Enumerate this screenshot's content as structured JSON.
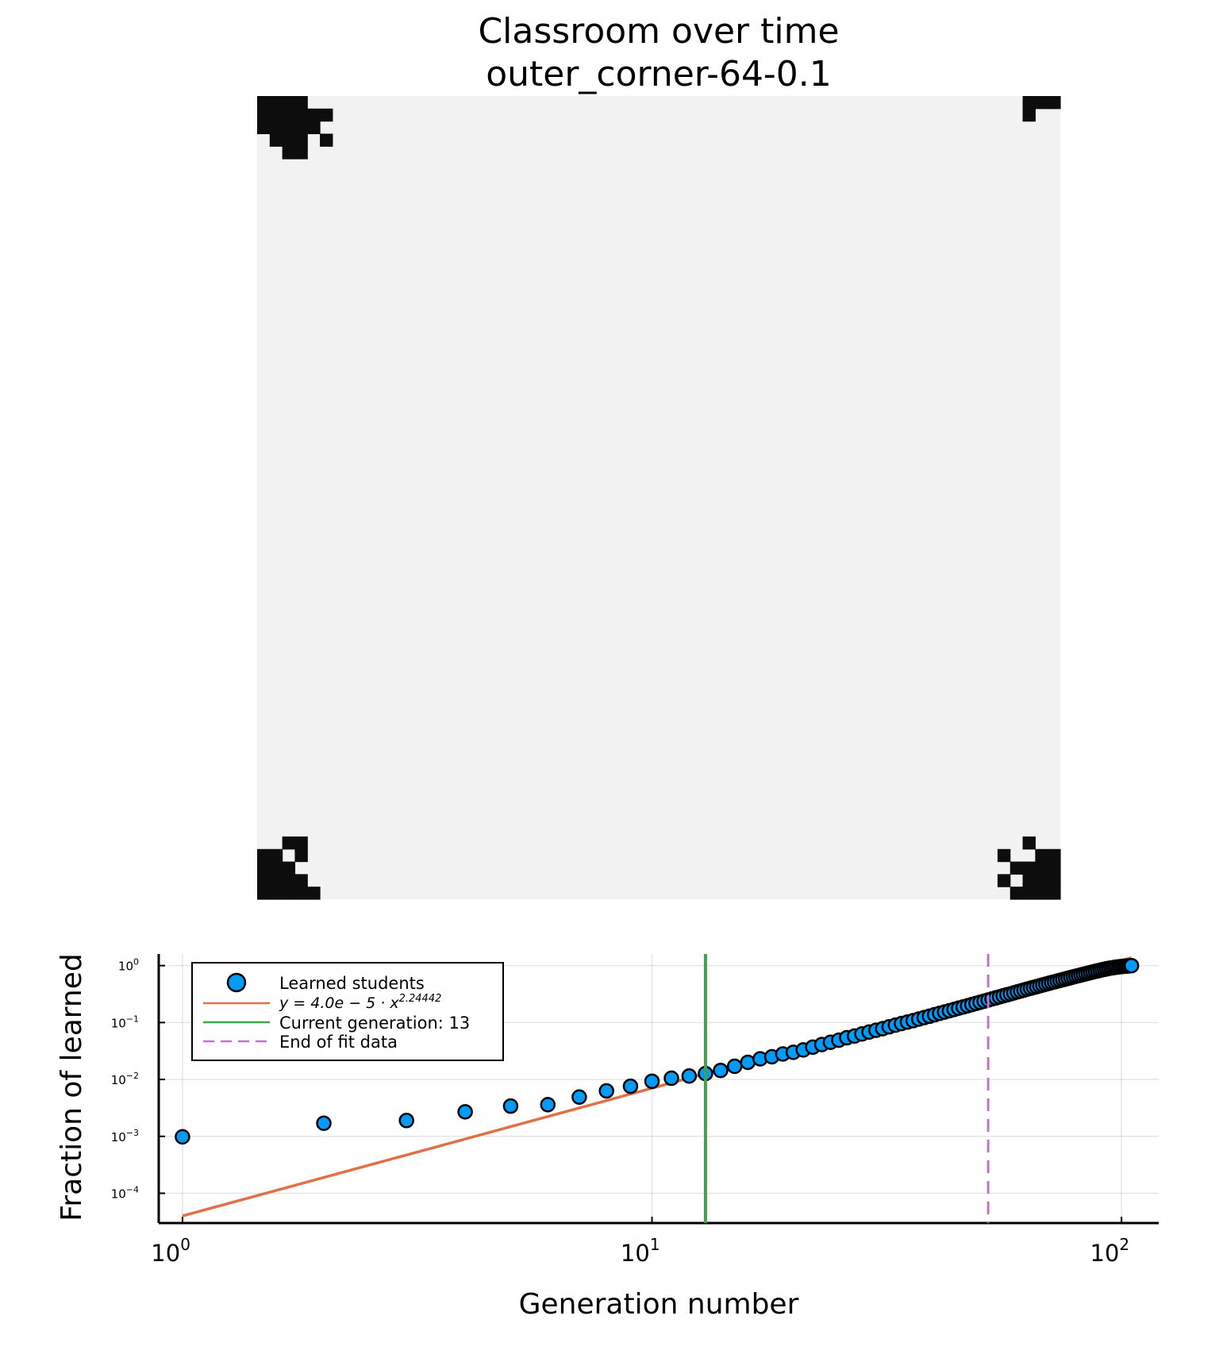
{
  "figure": {
    "title_line1": "Classroom over time",
    "title_line2": "outer_corner-64-0.1"
  },
  "heatmap": {
    "grid_size": 64,
    "background_color": "#f2f2f2",
    "learned_color": "#0d0d0d",
    "learned_cells": [
      [
        0,
        0
      ],
      [
        0,
        1
      ],
      [
        0,
        2
      ],
      [
        0,
        3
      ],
      [
        1,
        0
      ],
      [
        1,
        1
      ],
      [
        1,
        2
      ],
      [
        1,
        3
      ],
      [
        1,
        4
      ],
      [
        1,
        5
      ],
      [
        2,
        0
      ],
      [
        2,
        1
      ],
      [
        2,
        2
      ],
      [
        2,
        3
      ],
      [
        2,
        4
      ],
      [
        3,
        1
      ],
      [
        3,
        2
      ],
      [
        3,
        3
      ],
      [
        3,
        5
      ],
      [
        4,
        2
      ],
      [
        4,
        3
      ],
      [
        0,
        61
      ],
      [
        0,
        62
      ],
      [
        0,
        63
      ],
      [
        1,
        61
      ],
      [
        59,
        2
      ],
      [
        59,
        3
      ],
      [
        60,
        0
      ],
      [
        60,
        1
      ],
      [
        60,
        3
      ],
      [
        61,
        0
      ],
      [
        61,
        1
      ],
      [
        61,
        2
      ],
      [
        62,
        0
      ],
      [
        62,
        1
      ],
      [
        62,
        2
      ],
      [
        62,
        3
      ],
      [
        63,
        0
      ],
      [
        63,
        1
      ],
      [
        63,
        2
      ],
      [
        63,
        3
      ],
      [
        63,
        4
      ],
      [
        59,
        61
      ],
      [
        60,
        59
      ],
      [
        60,
        62
      ],
      [
        60,
        63
      ],
      [
        61,
        60
      ],
      [
        61,
        61
      ],
      [
        61,
        62
      ],
      [
        61,
        63
      ],
      [
        62,
        59
      ],
      [
        62,
        61
      ],
      [
        62,
        62
      ],
      [
        62,
        63
      ],
      [
        63,
        60
      ],
      [
        63,
        61
      ],
      [
        63,
        62
      ],
      [
        63,
        63
      ]
    ]
  },
  "chart_data": {
    "type": "scatter",
    "xscale": "log",
    "yscale": "log",
    "xlabel": "Generation number",
    "ylabel": "Fraction of learned",
    "xlim": [
      0.89,
      120
    ],
    "ylim": [
      3e-05,
      1.6
    ],
    "x_ticks": [
      {
        "base": "10",
        "exp": "0"
      },
      {
        "base": "10",
        "exp": "1"
      },
      {
        "base": "10",
        "exp": "2"
      }
    ],
    "y_ticks": [
      {
        "base": "10",
        "exp": "0"
      },
      {
        "base": "10",
        "exp": "−1"
      },
      {
        "base": "10",
        "exp": "−2"
      },
      {
        "base": "10",
        "exp": "−3"
      },
      {
        "base": "10",
        "exp": "−4"
      }
    ],
    "grid": true,
    "legend_position": "top-left",
    "series": [
      {
        "name": "Learned students",
        "kind": "scatter",
        "color": "#009af9",
        "x": [
          1,
          2,
          3,
          4,
          5,
          6,
          7,
          8,
          9,
          10,
          11,
          12,
          13,
          14,
          15,
          16,
          17,
          18,
          19,
          20,
          21,
          22,
          23,
          24,
          25,
          26,
          27,
          28,
          29,
          30,
          31,
          32,
          33,
          34,
          35,
          36,
          37,
          38,
          39,
          40,
          41,
          42,
          43,
          44,
          45,
          46,
          47,
          48,
          49,
          50,
          51,
          52,
          53,
          54,
          55,
          56,
          57,
          58,
          59,
          60,
          61,
          62,
          63,
          64,
          65,
          66,
          67,
          68,
          69,
          70,
          71,
          72,
          73,
          74,
          75,
          76,
          77,
          78,
          79,
          80,
          81,
          82,
          83,
          84,
          85,
          86,
          87,
          88,
          89,
          90,
          91,
          92,
          93,
          94,
          95,
          96,
          97,
          98,
          99,
          100,
          101,
          102,
          103,
          104,
          105
        ],
        "y": [
          0.00098,
          0.0017,
          0.0019,
          0.0027,
          0.0034,
          0.0036,
          0.0049,
          0.0063,
          0.0076,
          0.0093,
          0.0105,
          0.0115,
          0.0127,
          0.0144,
          0.017,
          0.02,
          0.023,
          0.025,
          0.028,
          0.03,
          0.033,
          0.037,
          0.041,
          0.045,
          0.049,
          0.054,
          0.058,
          0.063,
          0.068,
          0.073,
          0.078,
          0.084,
          0.09,
          0.096,
          0.102,
          0.108,
          0.115,
          0.122,
          0.129,
          0.137,
          0.145,
          0.153,
          0.161,
          0.17,
          0.179,
          0.188,
          0.197,
          0.207,
          0.217,
          0.227,
          0.238,
          0.249,
          0.26,
          0.271,
          0.283,
          0.295,
          0.307,
          0.319,
          0.332,
          0.345,
          0.358,
          0.372,
          0.386,
          0.4,
          0.414,
          0.428,
          0.443,
          0.458,
          0.473,
          0.488,
          0.503,
          0.519,
          0.535,
          0.551,
          0.567,
          0.583,
          0.6,
          0.617,
          0.634,
          0.651,
          0.668,
          0.685,
          0.702,
          0.72,
          0.738,
          0.756,
          0.774,
          0.792,
          0.81,
          0.828,
          0.846,
          0.863,
          0.879,
          0.894,
          0.908,
          0.921,
          0.933,
          0.944,
          0.954,
          0.963,
          0.971,
          0.978,
          0.984,
          0.99,
          0.998
        ]
      },
      {
        "name": "y = 4.0e − 5 · x^2.24442",
        "name_base": "y = 4.0e − 5 · x",
        "name_exp": "2.24442",
        "kind": "line",
        "color": "#e26f46",
        "coefficient": 4e-05,
        "exponent": 2.24442,
        "x_range": [
          1,
          105
        ]
      },
      {
        "name": "Current generation: 13",
        "kind": "vline",
        "color": "#3da44d",
        "x": 13
      },
      {
        "name": "End of fit data",
        "kind": "vline-dashed",
        "color": "#c271d2",
        "x": 52
      }
    ]
  }
}
